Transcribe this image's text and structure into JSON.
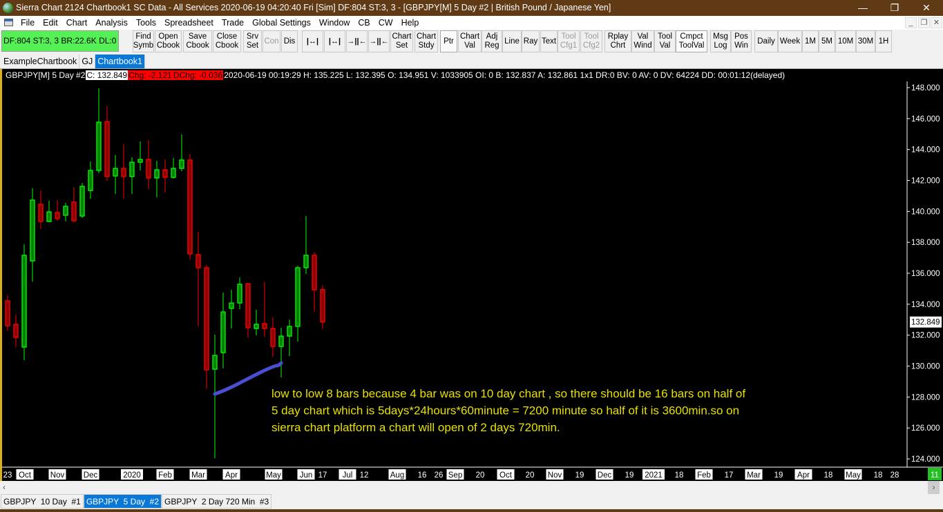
{
  "window": {
    "title": "Sierra Chart 2124 Chartbook1  SC Data - All Services 2020-06-19  04:20:40 Fri [Sim]  DF:804  ST:3, 3 - [GBPJPY[M]  5 Day  #2 | British Pound / Japanese Yen]"
  },
  "menu": [
    "File",
    "Edit",
    "Chart",
    "Analysis",
    "Tools",
    "Spreadsheet",
    "Trade",
    "Global Settings",
    "Window",
    "CB",
    "CW",
    "Help"
  ],
  "toolbar": {
    "status": "DF:804  ST:3, 3  BR:22.6K  DL:0",
    "status_color": "#55f055",
    "buttons": [
      {
        "label": "Find\nSymb"
      },
      {
        "label": "Open\nCbook"
      },
      {
        "label": "Save\nCbook"
      },
      {
        "label": "Close\nCbook"
      },
      {
        "label": "Srv\nSet"
      },
      {
        "label": "Con",
        "disabled": true
      },
      {
        "label": "Dis"
      },
      {
        "label": "|↔|",
        "icon": "expand-bar-spacing-icon"
      },
      {
        "label": "|↔|",
        "icon": "expand-bar-spacing-bold-icon"
      },
      {
        "label": "→||←",
        "icon": "compress-bar-spacing-icon"
      },
      {
        "label": "→||←",
        "icon": "compress-bar-spacing-bold-icon"
      },
      {
        "label": "Chart\nSet"
      },
      {
        "label": "Chart\nStdy"
      },
      {
        "label": "Ptr",
        "selected": true
      },
      {
        "label": "Chart\nVal"
      },
      {
        "label": "Adj\nReg"
      },
      {
        "label": "Line"
      },
      {
        "label": "Ray"
      },
      {
        "label": "Text"
      },
      {
        "label": "Tool\nCfg1",
        "disabled": true
      },
      {
        "label": "Tool\nCfg2",
        "disabled": true
      },
      {
        "label": "Rplay\nChrt"
      },
      {
        "label": "Val\nWind"
      },
      {
        "label": "Tool\nVal"
      },
      {
        "label": "Cmpct\nToolVal",
        "selected": true
      },
      {
        "label": "Msg\nLog"
      },
      {
        "label": "Pos\nWin"
      },
      {
        "label": "Daily"
      },
      {
        "label": "Week"
      },
      {
        "label": "1M"
      },
      {
        "label": "5M"
      },
      {
        "label": "10M"
      },
      {
        "label": "30M"
      },
      {
        "label": "1H"
      }
    ]
  },
  "chartbook_tabs": [
    {
      "label": "ExampleChartbook"
    },
    {
      "label": "GJ"
    },
    {
      "label": "Chartbook1",
      "active": true
    }
  ],
  "info": {
    "symbol": "GBPJPY[M]  5 Day  #2",
    "close": "C: 132.849",
    "chg": "Chg: -2.121",
    "dchg": "DChg: -0.036",
    "rest": "2020-06-19 00:19:29 H: 135.225 L: 132.395 O: 134.951 V: 1033905 OI: 0 B: 132.837 A: 132.861 1x1 DR:0 BV: 0 AV: 0 DV: 64224 DD: 00:01:12(delayed)"
  },
  "chart_data": {
    "type": "candlestick",
    "symbol": "GBPJPY[M]",
    "ylim": [
      123,
      149
    ],
    "yticks": [
      "148.000",
      "146.000",
      "144.000",
      "142.000",
      "140.000",
      "138.000",
      "136.000",
      "134.000",
      "132.000",
      "130.000",
      "128.000",
      "126.000",
      "124.000"
    ],
    "last_price": "132.849",
    "up_color": "#00ff00",
    "down_color": "#ff0000",
    "up_fill": "#008000",
    "down_fill": "#8b0000",
    "ohlc": [
      [
        134.22,
        134.57,
        132.3,
        132.61
      ],
      [
        132.7,
        133.33,
        131.23,
        131.85
      ],
      [
        131.23,
        137.87,
        130.38,
        137.16
      ],
      [
        136.8,
        141.49,
        135.47,
        140.73
      ],
      [
        140.46,
        141.35,
        138.86,
        139.35
      ],
      [
        139.35,
        140.69,
        139.3,
        139.97
      ],
      [
        139.93,
        140.73,
        139.39,
        139.53
      ],
      [
        139.75,
        140.55,
        139.35,
        140.33
      ],
      [
        140.6,
        141.58,
        139.3,
        139.39
      ],
      [
        139.7,
        141.84,
        139.57,
        141.62
      ],
      [
        141.35,
        143.23,
        140.82,
        142.65
      ],
      [
        142.65,
        147.96,
        142.47,
        145.77
      ],
      [
        145.81,
        146.8,
        141.98,
        142.25
      ],
      [
        142.29,
        143.63,
        141.13,
        142.78
      ],
      [
        142.78,
        144.34,
        140.82,
        142.25
      ],
      [
        142.25,
        143.5,
        141.13,
        143.18
      ],
      [
        143.18,
        144.52,
        142.65,
        143.36
      ],
      [
        143.36,
        144.61,
        141.44,
        142.16
      ],
      [
        142.16,
        143.27,
        140.91,
        142.69
      ],
      [
        142.69,
        143.36,
        141.22,
        142.2
      ],
      [
        142.2,
        143.45,
        142.11,
        142.78
      ],
      [
        142.78,
        144.97,
        142.6,
        143.32
      ],
      [
        143.32,
        143.72,
        136.89,
        137.25
      ],
      [
        137.21,
        138.68,
        132.57,
        136.36
      ],
      [
        136.36,
        136.54,
        128.55,
        129.76
      ],
      [
        129.8,
        132.03,
        124.05,
        130.69
      ],
      [
        130.87,
        134.75,
        129.85,
        133.5
      ],
      [
        133.73,
        134.93,
        132.43,
        134.08
      ],
      [
        134.08,
        135.73,
        133.68,
        135.29
      ],
      [
        135.33,
        135.33,
        131.85,
        132.48
      ],
      [
        132.43,
        133.64,
        131.99,
        132.7
      ],
      [
        132.75,
        135.42,
        131.9,
        132.43
      ],
      [
        132.43,
        133.15,
        130.6,
        131.27
      ],
      [
        131.27,
        132.48,
        129.27,
        131.94
      ],
      [
        131.94,
        133.01,
        130.65,
        132.57
      ],
      [
        132.57,
        136.49,
        131.59,
        136.36
      ],
      [
        136.36,
        139.7,
        135.96,
        137.16
      ],
      [
        137.16,
        137.38,
        133.5,
        134.93
      ],
      [
        134.951,
        135.225,
        132.395,
        132.849
      ]
    ],
    "xticks": [
      {
        "label": "23"
      },
      {
        "label": "Oct",
        "major": true
      },
      {
        "label": "Nov",
        "major": true
      },
      {
        "label": "Dec",
        "major": true
      },
      {
        "label": "2020",
        "major": true
      },
      {
        "label": "Feb",
        "major": true
      },
      {
        "label": "Mar",
        "major": true
      },
      {
        "label": "Apr",
        "major": true
      },
      {
        "label": "May",
        "major": true
      },
      {
        "label": "Jun",
        "major": true
      },
      {
        "label": "17"
      },
      {
        "label": "Jul",
        "major": true
      },
      {
        "label": "12"
      },
      {
        "label": "Aug",
        "major": true
      },
      {
        "label": "16"
      },
      {
        "label": "26"
      },
      {
        "label": "Sep",
        "major": true
      },
      {
        "label": "20"
      },
      {
        "label": "Oct",
        "major": true
      },
      {
        "label": "20"
      },
      {
        "label": "Nov",
        "major": true
      },
      {
        "label": "19"
      },
      {
        "label": "Dec",
        "major": true
      },
      {
        "label": "19"
      },
      {
        "label": "2021",
        "major": true
      },
      {
        "label": "18"
      },
      {
        "label": "Feb",
        "major": true
      },
      {
        "label": "17"
      },
      {
        "label": "Mar",
        "major": true
      },
      {
        "label": "19"
      },
      {
        "label": "Apr",
        "major": true
      },
      {
        "label": "18"
      },
      {
        "label": "May",
        "major": true
      },
      {
        "label": "18"
      },
      {
        "label": "28"
      }
    ],
    "x_end_label": "11",
    "drawing": {
      "color": "#4a4fd0",
      "from": {
        "bar": 26,
        "price": 128.2
      },
      "to": {
        "bar": 34,
        "price": 130.2
      }
    },
    "annotation": {
      "color": "#e8e000",
      "lines": [
        "low to low 8 bars because 4 bar was on 10 day chart , so there should be 16 bars on half of",
        "5 day chart which is 5days*24hours*60minute = 7200 minute so half of it is 3600min.so on",
        "sierra chart platform a chart will open of 2 days 720min."
      ]
    }
  },
  "bottom_tabs": [
    {
      "label": "GBPJPY  10 Day  #1"
    },
    {
      "label": "GBPJPY  5 Day  #2",
      "active": true
    },
    {
      "label": "GBPJPY  2 Day 720 Min  #3"
    }
  ]
}
